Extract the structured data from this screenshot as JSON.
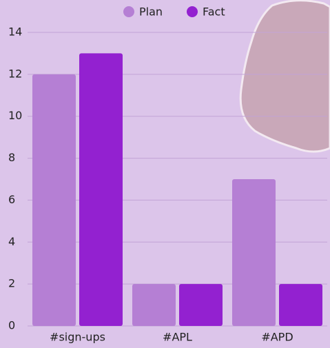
{
  "chart_data": {
    "type": "bar",
    "categories": [
      "#sign-ups",
      "#APL",
      "#APD"
    ],
    "series": [
      {
        "name": "Plan",
        "color": "#b57fd4",
        "values": [
          12,
          2,
          7
        ]
      },
      {
        "name": "Fact",
        "color": "#9321d0",
        "values": [
          13,
          2,
          2
        ]
      }
    ],
    "ylim": [
      0,
      14
    ],
    "yticks": [
      0,
      2,
      4,
      6,
      8,
      10,
      12,
      14
    ],
    "grid": true,
    "legend": "top"
  }
}
